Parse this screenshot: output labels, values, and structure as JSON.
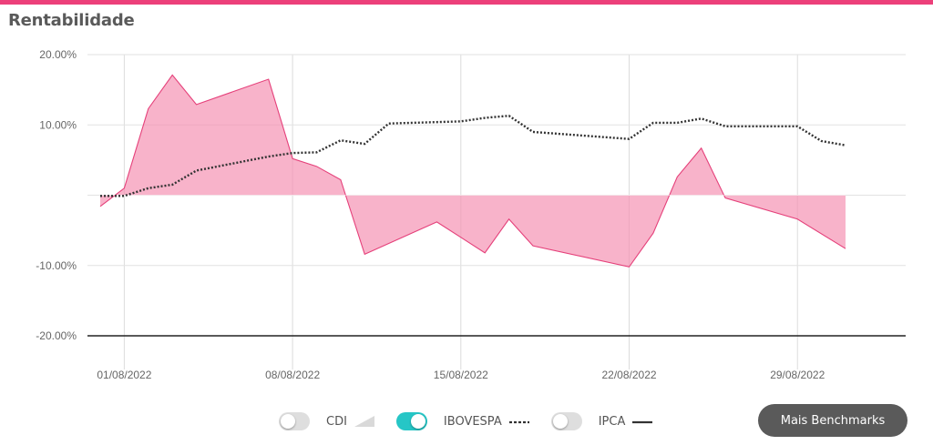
{
  "page": {
    "title": "Rentabilidade",
    "accent_color": "#ec407a"
  },
  "legend": {
    "items": [
      {
        "label": "CDI",
        "enabled": false,
        "marker": "area-triangle-icon"
      },
      {
        "label": "IBOVESPA",
        "enabled": true,
        "marker": "dotted-line-icon",
        "toggle_color": "#26c6c6"
      },
      {
        "label": "IPCA",
        "enabled": false,
        "marker": "solid-line-icon"
      }
    ]
  },
  "button": {
    "label": "Mais Benchmarks"
  },
  "chart_data": {
    "type": "area",
    "xlabel": "",
    "ylabel": "",
    "ylim": [
      -20,
      20
    ],
    "grid": true,
    "x_tick_labels": [
      "01/08/2022",
      "08/08/2022",
      "15/08/2022",
      "22/08/2022",
      "29/08/2022"
    ],
    "y_tick_labels": [
      "20.00%",
      "10.00%",
      "-10.00%",
      "-20.00%"
    ],
    "series": [
      {
        "type": "area",
        "color": "#f48fb1",
        "line_color": "#e5407a",
        "points": [
          {
            "x": "31/07/2022",
            "y": -1.6
          },
          {
            "x": "31/07/2022",
            "y": -1.6
          },
          {
            "x": "01/08/2022",
            "y": 1.0
          },
          {
            "x": "02/08/2022",
            "y": 12.3
          },
          {
            "x": "03/08/2022",
            "y": 17.1
          },
          {
            "x": "04/08/2022",
            "y": 12.9
          },
          {
            "x": "07/08/2022",
            "y": 16.5
          },
          {
            "x": "08/08/2022",
            "y": 5.2
          },
          {
            "x": "09/08/2022",
            "y": 4.1
          },
          {
            "x": "10/08/2022",
            "y": 2.2
          },
          {
            "x": "11/08/2022",
            "y": -8.4
          },
          {
            "x": "14/08/2022",
            "y": -3.8
          },
          {
            "x": "16/08/2022",
            "y": -8.2
          },
          {
            "x": "17/08/2022",
            "y": -3.4
          },
          {
            "x": "18/08/2022",
            "y": -7.2
          },
          {
            "x": "22/08/2022",
            "y": -10.2
          },
          {
            "x": "23/08/2022",
            "y": -5.4
          },
          {
            "x": "24/08/2022",
            "y": 2.6
          },
          {
            "x": "25/08/2022",
            "y": 6.7
          },
          {
            "x": "26/08/2022",
            "y": -0.4
          },
          {
            "x": "29/08/2022",
            "y": -3.4
          },
          {
            "x": "31/08/2022",
            "y": -7.6
          }
        ]
      },
      {
        "name": "IBOVESPA",
        "type": "line",
        "style": "dotted",
        "color": "#333333",
        "points": [
          {
            "x": "31/07/2022",
            "y": -0.1
          },
          {
            "x": "01/08/2022",
            "y": -0.1
          },
          {
            "x": "02/08/2022",
            "y": 1.0
          },
          {
            "x": "03/08/2022",
            "y": 1.5
          },
          {
            "x": "04/08/2022",
            "y": 3.5
          },
          {
            "x": "07/08/2022",
            "y": 5.5
          },
          {
            "x": "08/08/2022",
            "y": 6.0
          },
          {
            "x": "09/08/2022",
            "y": 6.1
          },
          {
            "x": "10/08/2022",
            "y": 7.8
          },
          {
            "x": "11/08/2022",
            "y": 7.3
          },
          {
            "x": "12/08/2022",
            "y": 10.2
          },
          {
            "x": "15/08/2022",
            "y": 10.5
          },
          {
            "x": "16/08/2022",
            "y": 11.0
          },
          {
            "x": "17/08/2022",
            "y": 11.3
          },
          {
            "x": "18/08/2022",
            "y": 9.0
          },
          {
            "x": "22/08/2022",
            "y": 8.0
          },
          {
            "x": "23/08/2022",
            "y": 10.3
          },
          {
            "x": "24/08/2022",
            "y": 10.3
          },
          {
            "x": "25/08/2022",
            "y": 10.9
          },
          {
            "x": "26/08/2022",
            "y": 9.8
          },
          {
            "x": "29/08/2022",
            "y": 9.8
          },
          {
            "x": "30/08/2022",
            "y": 7.7
          },
          {
            "x": "31/08/2022",
            "y": 7.1
          }
        ]
      }
    ]
  }
}
